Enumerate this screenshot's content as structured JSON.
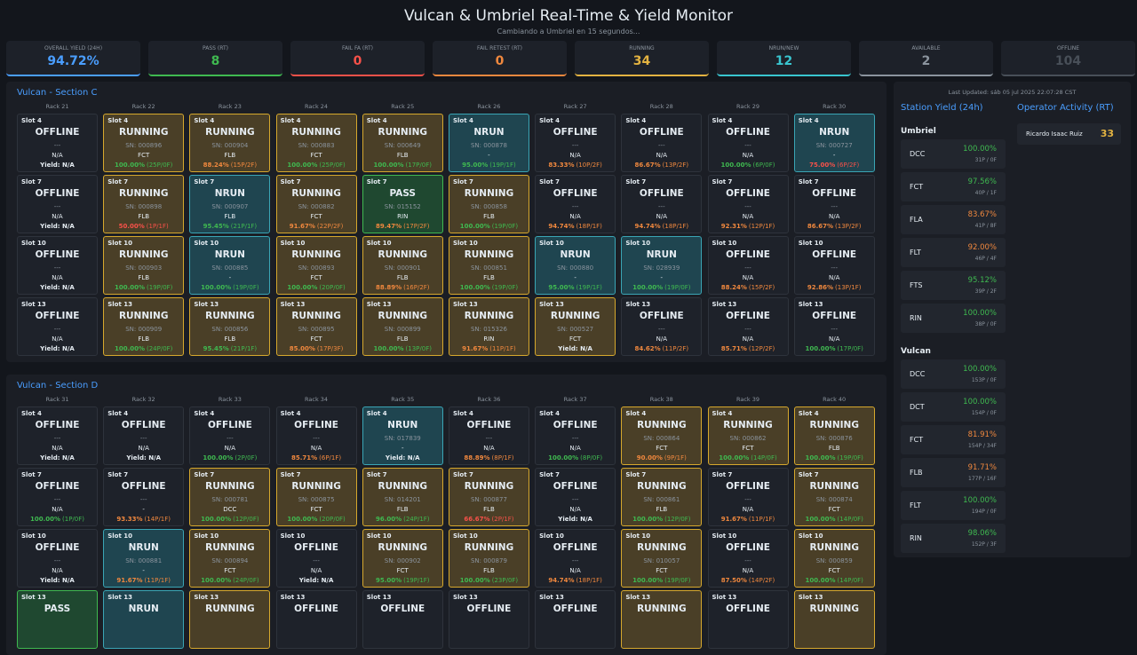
{
  "header": {
    "title": "Vulcan & Umbriel Real-Time & Yield Monitor",
    "subtitle": "Cambiando a Umbriel en 15 segundos..."
  },
  "kpis": [
    {
      "label": "OVERALL YIELD (24H)",
      "value": "94.72%",
      "color": "#4a9eff"
    },
    {
      "label": "PASS (RT)",
      "value": "8",
      "color": "#3fb950"
    },
    {
      "label": "FAIL FA (RT)",
      "value": "0",
      "color": "#f85149"
    },
    {
      "label": "FAIL RETEST (RT)",
      "value": "0",
      "color": "#f0883e"
    },
    {
      "label": "RUNNING",
      "value": "34",
      "color": "#e3b341"
    },
    {
      "label": "NRUN/NEW",
      "value": "12",
      "color": "#39c5cf"
    },
    {
      "label": "AVAILABLE",
      "value": "2",
      "color": "#8b949e"
    },
    {
      "label": "OFFLINE",
      "value": "104",
      "color": "#484f58"
    }
  ],
  "sections": [
    {
      "title": "Vulcan - Section C",
      "racks": [
        "Rack 21",
        "Rack 22",
        "Rack 23",
        "Rack 24",
        "Rack 25",
        "Rack 26",
        "Rack 27",
        "Rack 28",
        "Rack 29",
        "Rack 30"
      ],
      "rows": [
        [
          {
            "slot": "Slot 4",
            "status": "OFFLINE",
            "sn": "---",
            "test": "N/A",
            "yield": "Yield: N/A"
          },
          {
            "slot": "Slot 4",
            "status": "RUNNING",
            "sn": "SN: 000896",
            "test": "FCT",
            "yield": "100.00%",
            "count": "(25P/0F)"
          },
          {
            "slot": "Slot 4",
            "status": "RUNNING",
            "sn": "SN: 000904",
            "test": "FLB",
            "yield": "88.24%",
            "count": "(15P/2F)"
          },
          {
            "slot": "Slot 4",
            "status": "RUNNING",
            "sn": "SN: 000883",
            "test": "FCT",
            "yield": "100.00%",
            "count": "(25P/0F)"
          },
          {
            "slot": "Slot 4",
            "status": "RUNNING",
            "sn": "SN: 000649",
            "test": "FLB",
            "yield": "100.00%",
            "count": "(17P/0F)"
          },
          {
            "slot": "Slot 4",
            "status": "NRUN",
            "sn": "SN: 000878",
            "test": "-",
            "yield": "95.00%",
            "count": "(19P/1F)"
          },
          {
            "slot": "Slot 4",
            "status": "OFFLINE",
            "sn": "---",
            "test": "N/A",
            "yield": "83.33%",
            "count": "(10P/2F)"
          },
          {
            "slot": "Slot 4",
            "status": "OFFLINE",
            "sn": "---",
            "test": "N/A",
            "yield": "86.67%",
            "count": "(13P/2F)"
          },
          {
            "slot": "Slot 4",
            "status": "OFFLINE",
            "sn": "---",
            "test": "N/A",
            "yield": "100.00%",
            "count": "(6P/0F)"
          },
          {
            "slot": "Slot 4",
            "status": "NRUN",
            "sn": "SN: 000727",
            "test": "-",
            "yield": "75.00%",
            "count": "(6P/2F)"
          }
        ],
        [
          {
            "slot": "Slot 7",
            "status": "OFFLINE",
            "sn": "---",
            "test": "N/A",
            "yield": "Yield: N/A"
          },
          {
            "slot": "Slot 7",
            "status": "RUNNING",
            "sn": "SN: 000898",
            "test": "FLB",
            "yield": "50.00%",
            "count": "(1P/1F)"
          },
          {
            "slot": "Slot 7",
            "status": "NRUN",
            "sn": "SN: 000907",
            "test": "FLB",
            "yield": "95.45%",
            "count": "(21P/1F)"
          },
          {
            "slot": "Slot 7",
            "status": "RUNNING",
            "sn": "SN: 000882",
            "test": "FCT",
            "yield": "91.67%",
            "count": "(22P/2F)"
          },
          {
            "slot": "Slot 7",
            "status": "PASS",
            "sn": "SN: 015152",
            "test": "RIN",
            "yield": "89.47%",
            "count": "(17P/2F)"
          },
          {
            "slot": "Slot 7",
            "status": "RUNNING",
            "sn": "SN: 000858",
            "test": "FLB",
            "yield": "100.00%",
            "count": "(19P/0F)"
          },
          {
            "slot": "Slot 7",
            "status": "OFFLINE",
            "sn": "---",
            "test": "N/A",
            "yield": "94.74%",
            "count": "(18P/1F)"
          },
          {
            "slot": "Slot 7",
            "status": "OFFLINE",
            "sn": "---",
            "test": "N/A",
            "yield": "94.74%",
            "count": "(18P/1F)"
          },
          {
            "slot": "Slot 7",
            "status": "OFFLINE",
            "sn": "---",
            "test": "N/A",
            "yield": "92.31%",
            "count": "(12P/1F)"
          },
          {
            "slot": "Slot 7",
            "status": "OFFLINE",
            "sn": "---",
            "test": "N/A",
            "yield": "86.67%",
            "count": "(13P/2F)"
          }
        ],
        [
          {
            "slot": "Slot 10",
            "status": "OFFLINE",
            "sn": "---",
            "test": "N/A",
            "yield": "Yield: N/A"
          },
          {
            "slot": "Slot 10",
            "status": "RUNNING",
            "sn": "SN: 000903",
            "test": "FLB",
            "yield": "100.00%",
            "count": "(19P/0F)"
          },
          {
            "slot": "Slot 10",
            "status": "NRUN",
            "sn": "SN: 000885",
            "test": "-",
            "yield": "100.00%",
            "count": "(19P/0F)"
          },
          {
            "slot": "Slot 10",
            "status": "RUNNING",
            "sn": "SN: 000893",
            "test": "FCT",
            "yield": "100.00%",
            "count": "(20P/0F)"
          },
          {
            "slot": "Slot 10",
            "status": "RUNNING",
            "sn": "SN: 000901",
            "test": "FLB",
            "yield": "88.89%",
            "count": "(16P/2F)"
          },
          {
            "slot": "Slot 10",
            "status": "RUNNING",
            "sn": "SN: 000851",
            "test": "FLB",
            "yield": "100.00%",
            "count": "(19P/0F)"
          },
          {
            "slot": "Slot 10",
            "status": "NRUN",
            "sn": "SN: 000880",
            "test": "-",
            "yield": "95.00%",
            "count": "(19P/1F)"
          },
          {
            "slot": "Slot 10",
            "status": "NRUN",
            "sn": "SN: 028939",
            "test": "-",
            "yield": "100.00%",
            "count": "(19P/0F)"
          },
          {
            "slot": "Slot 10",
            "status": "OFFLINE",
            "sn": "---",
            "test": "N/A",
            "yield": "88.24%",
            "count": "(15P/2F)"
          },
          {
            "slot": "Slot 10",
            "status": "OFFLINE",
            "sn": "---",
            "test": "N/A",
            "yield": "92.86%",
            "count": "(13P/1F)"
          }
        ],
        [
          {
            "slot": "Slot 13",
            "status": "OFFLINE",
            "sn": "---",
            "test": "N/A",
            "yield": "Yield: N/A"
          },
          {
            "slot": "Slot 13",
            "status": "RUNNING",
            "sn": "SN: 000909",
            "test": "FLB",
            "yield": "100.00%",
            "count": "(24P/0F)"
          },
          {
            "slot": "Slot 13",
            "status": "RUNNING",
            "sn": "SN: 000856",
            "test": "FLB",
            "yield": "95.45%",
            "count": "(21P/1F)"
          },
          {
            "slot": "Slot 13",
            "status": "RUNNING",
            "sn": "SN: 000895",
            "test": "FCT",
            "yield": "85.00%",
            "count": "(17P/3F)"
          },
          {
            "slot": "Slot 13",
            "status": "RUNNING",
            "sn": "SN: 000899",
            "test": "FLB",
            "yield": "100.00%",
            "count": "(13P/0F)"
          },
          {
            "slot": "Slot 13",
            "status": "RUNNING",
            "sn": "SN: 015326",
            "test": "RIN",
            "yield": "91.67%",
            "count": "(11P/1F)"
          },
          {
            "slot": "Slot 13",
            "status": "RUNNING",
            "sn": "SN: 000527",
            "test": "FCT",
            "yield": "Yield: N/A"
          },
          {
            "slot": "Slot 13",
            "status": "OFFLINE",
            "sn": "---",
            "test": "N/A",
            "yield": "84.62%",
            "count": "(11P/2F)"
          },
          {
            "slot": "Slot 13",
            "status": "OFFLINE",
            "sn": "---",
            "test": "N/A",
            "yield": "85.71%",
            "count": "(12P/2F)"
          },
          {
            "slot": "Slot 13",
            "status": "OFFLINE",
            "sn": "---",
            "test": "N/A",
            "yield": "100.00%",
            "count": "(17P/0F)"
          }
        ]
      ]
    },
    {
      "title": "Vulcan - Section D",
      "racks": [
        "Rack 31",
        "Rack 32",
        "Rack 33",
        "Rack 34",
        "Rack 35",
        "Rack 36",
        "Rack 37",
        "Rack 38",
        "Rack 39",
        "Rack 40"
      ],
      "rows": [
        [
          {
            "slot": "Slot 4",
            "status": "OFFLINE",
            "sn": "---",
            "test": "N/A",
            "yield": "Yield: N/A"
          },
          {
            "slot": "Slot 4",
            "status": "OFFLINE",
            "sn": "---",
            "test": "N/A",
            "yield": "Yield: N/A"
          },
          {
            "slot": "Slot 4",
            "status": "OFFLINE",
            "sn": "---",
            "test": "N/A",
            "yield": "100.00%",
            "count": "(2P/0F)"
          },
          {
            "slot": "Slot 4",
            "status": "OFFLINE",
            "sn": "---",
            "test": "N/A",
            "yield": "85.71%",
            "count": "(6P/1F)"
          },
          {
            "slot": "Slot 4",
            "status": "NRUN",
            "sn": "SN: 017839",
            "test": "-",
            "yield": "Yield: N/A"
          },
          {
            "slot": "Slot 4",
            "status": "OFFLINE",
            "sn": "---",
            "test": "N/A",
            "yield": "88.89%",
            "count": "(8P/1F)"
          },
          {
            "slot": "Slot 4",
            "status": "OFFLINE",
            "sn": "---",
            "test": "N/A",
            "yield": "100.00%",
            "count": "(8P/0F)"
          },
          {
            "slot": "Slot 4",
            "status": "RUNNING",
            "sn": "SN: 000864",
            "test": "FCT",
            "yield": "90.00%",
            "count": "(9P/1F)"
          },
          {
            "slot": "Slot 4",
            "status": "RUNNING",
            "sn": "SN: 000862",
            "test": "FCT",
            "yield": "100.00%",
            "count": "(14P/0F)"
          },
          {
            "slot": "Slot 4",
            "status": "RUNNING",
            "sn": "SN: 000876",
            "test": "FLB",
            "yield": "100.00%",
            "count": "(19P/0F)"
          }
        ],
        [
          {
            "slot": "Slot 7",
            "status": "OFFLINE",
            "sn": "---",
            "test": "N/A",
            "yield": "100.00%",
            "count": "(1P/0F)"
          },
          {
            "slot": "Slot 7",
            "status": "OFFLINE",
            "sn": "---",
            "test": "-",
            "yield": "93.33%",
            "count": "(14P/1F)"
          },
          {
            "slot": "Slot 7",
            "status": "RUNNING",
            "sn": "SN: 000781",
            "test": "DCC",
            "yield": "100.00%",
            "count": "(12P/0F)"
          },
          {
            "slot": "Slot 7",
            "status": "RUNNING",
            "sn": "SN: 000875",
            "test": "FCT",
            "yield": "100.00%",
            "count": "(20P/0F)"
          },
          {
            "slot": "Slot 7",
            "status": "RUNNING",
            "sn": "SN: 014201",
            "test": "FLB",
            "yield": "96.00%",
            "count": "(24P/1F)"
          },
          {
            "slot": "Slot 7",
            "status": "RUNNING",
            "sn": "SN: 000877",
            "test": "FLB",
            "yield": "66.67%",
            "count": "(2P/1F)"
          },
          {
            "slot": "Slot 7",
            "status": "OFFLINE",
            "sn": "---",
            "test": "N/A",
            "yield": "Yield: N/A"
          },
          {
            "slot": "Slot 7",
            "status": "RUNNING",
            "sn": "SN: 000861",
            "test": "FLB",
            "yield": "100.00%",
            "count": "(12P/0F)"
          },
          {
            "slot": "Slot 7",
            "status": "OFFLINE",
            "sn": "---",
            "test": "N/A",
            "yield": "91.67%",
            "count": "(11P/1F)"
          },
          {
            "slot": "Slot 7",
            "status": "RUNNING",
            "sn": "SN: 000874",
            "test": "FCT",
            "yield": "100.00%",
            "count": "(14P/0F)"
          }
        ],
        [
          {
            "slot": "Slot 10",
            "status": "OFFLINE",
            "sn": "---",
            "test": "N/A",
            "yield": "Yield: N/A"
          },
          {
            "slot": "Slot 10",
            "status": "NRUN",
            "sn": "SN: 000881",
            "test": "-",
            "yield": "91.67%",
            "count": "(11P/1F)"
          },
          {
            "slot": "Slot 10",
            "status": "RUNNING",
            "sn": "SN: 000894",
            "test": "FCT",
            "yield": "100.00%",
            "count": "(24P/0F)"
          },
          {
            "slot": "Slot 10",
            "status": "OFFLINE",
            "sn": "---",
            "test": "N/A",
            "yield": "Yield: N/A"
          },
          {
            "slot": "Slot 10",
            "status": "RUNNING",
            "sn": "SN: 000902",
            "test": "FCT",
            "yield": "95.00%",
            "count": "(19P/1F)"
          },
          {
            "slot": "Slot 10",
            "status": "RUNNING",
            "sn": "SN: 000879",
            "test": "FLB",
            "yield": "100.00%",
            "count": "(23P/0F)"
          },
          {
            "slot": "Slot 10",
            "status": "OFFLINE",
            "sn": "---",
            "test": "N/A",
            "yield": "94.74%",
            "count": "(18P/1F)"
          },
          {
            "slot": "Slot 10",
            "status": "RUNNING",
            "sn": "SN: 010057",
            "test": "FCT",
            "yield": "100.00%",
            "count": "(19P/0F)"
          },
          {
            "slot": "Slot 10",
            "status": "OFFLINE",
            "sn": "---",
            "test": "N/A",
            "yield": "87.50%",
            "count": "(14P/2F)"
          },
          {
            "slot": "Slot 10",
            "status": "RUNNING",
            "sn": "SN: 000859",
            "test": "FCT",
            "yield": "100.00%",
            "count": "(14P/0F)"
          }
        ],
        [
          {
            "slot": "Slot 13",
            "status": "PASS"
          },
          {
            "slot": "Slot 13",
            "status": "NRUN"
          },
          {
            "slot": "Slot 13",
            "status": "RUNNING"
          },
          {
            "slot": "Slot 13",
            "status": "OFFLINE"
          },
          {
            "slot": "Slot 13",
            "status": "OFFLINE"
          },
          {
            "slot": "Slot 13",
            "status": "OFFLINE"
          },
          {
            "slot": "Slot 13",
            "status": "OFFLINE"
          },
          {
            "slot": "Slot 13",
            "status": "RUNNING"
          },
          {
            "slot": "Slot 13",
            "status": "OFFLINE"
          },
          {
            "slot": "Slot 13",
            "status": "RUNNING"
          }
        ]
      ]
    }
  ],
  "sidebar": {
    "last_updated": "Last Updated: sáb 05 jul 2025 22:07:28 CST",
    "station_title": "Station Yield (24h)",
    "operator_title": "Operator Activity (RT)",
    "groups": [
      {
        "name": "Umbriel",
        "stations": [
          {
            "station": "DCC",
            "yield": "100.00%",
            "counts": "31P / 0F"
          },
          {
            "station": "FCT",
            "yield": "97.56%",
            "counts": "40P / 1F"
          },
          {
            "station": "FLA",
            "yield": "83.67%",
            "counts": "41P / 8F"
          },
          {
            "station": "FLT",
            "yield": "92.00%",
            "counts": "46P / 4F"
          },
          {
            "station": "FTS",
            "yield": "95.12%",
            "counts": "39P / 2F"
          },
          {
            "station": "RIN",
            "yield": "100.00%",
            "counts": "38P / 0F"
          }
        ]
      },
      {
        "name": "Vulcan",
        "stations": [
          {
            "station": "DCC",
            "yield": "100.00%",
            "counts": "153P / 0F"
          },
          {
            "station": "DCT",
            "yield": "100.00%",
            "counts": "154P / 0F"
          },
          {
            "station": "FCT",
            "yield": "81.91%",
            "counts": "154P / 34F"
          },
          {
            "station": "FLB",
            "yield": "91.71%",
            "counts": "177P / 16F"
          },
          {
            "station": "FLT",
            "yield": "100.00%",
            "counts": "194P / 0F"
          },
          {
            "station": "RIN",
            "yield": "98.06%",
            "counts": "152P / 3F"
          }
        ]
      }
    ],
    "operators": [
      {
        "name": "Ricardo Isaac Ruiz",
        "count": "33"
      }
    ]
  }
}
